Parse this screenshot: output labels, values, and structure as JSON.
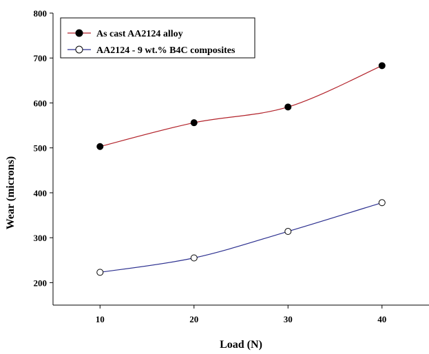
{
  "chart_data": {
    "type": "line",
    "x": [
      10,
      20,
      30,
      40
    ],
    "xticks": [
      10,
      20,
      30,
      40
    ],
    "yticks": [
      200,
      300,
      400,
      500,
      600,
      700,
      800
    ],
    "xlim": [
      5,
      45
    ],
    "ylim": [
      150,
      800
    ],
    "xlabel": "Load (N)",
    "ylabel": "Wear (microns)",
    "grid": false,
    "legend_position": "top-left",
    "series": [
      {
        "name": "As cast AA2124 alloy",
        "values": [
          503,
          556,
          591,
          683
        ],
        "color": "#b2222a",
        "marker": "filled-circle"
      },
      {
        "name": "AA2124 - 9 wt.% B4C composites",
        "values": [
          223,
          255,
          314,
          378
        ],
        "color": "#2b2f8f",
        "marker": "open-circle"
      }
    ]
  }
}
